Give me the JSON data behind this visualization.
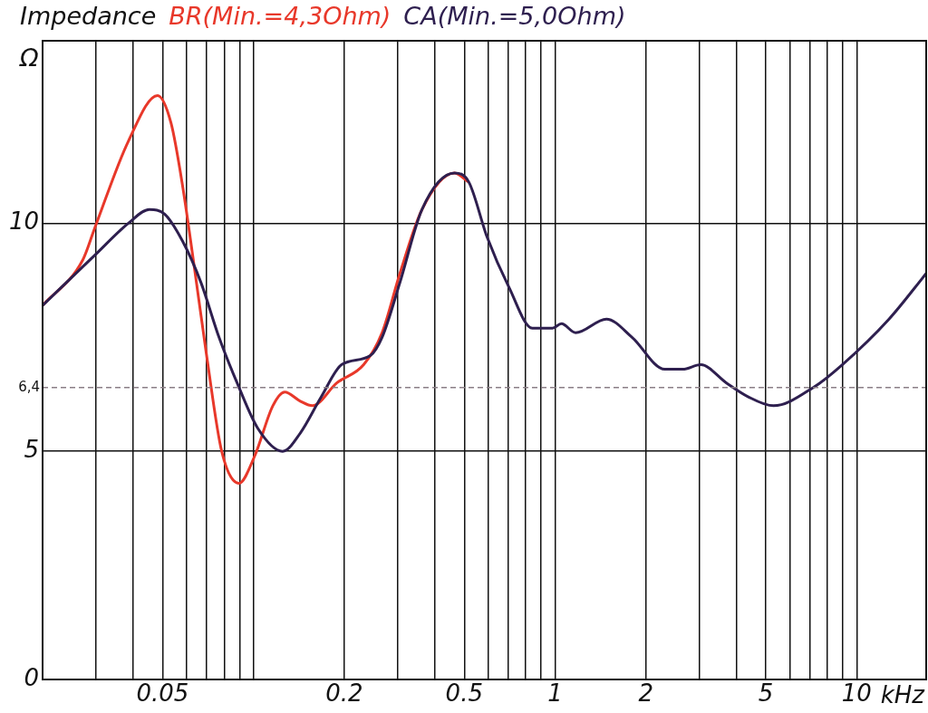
{
  "chart_data": {
    "type": "line",
    "title": "Impedance",
    "xlabel": "kHz",
    "ylabel": "Ω",
    "legend": "top",
    "grid": true,
    "log": "x",
    "xlim": [
      0.02,
      17
    ],
    "ylim": [
      0,
      14
    ],
    "xticks": [
      {
        "value": 0.03,
        "label": null
      },
      {
        "value": 0.04,
        "label": null
      },
      0.05,
      {
        "value": 0.06,
        "label": null
      },
      {
        "value": 0.07,
        "label": null
      },
      {
        "value": 0.08,
        "label": null
      },
      {
        "value": 0.09,
        "label": null
      },
      {
        "value": 0.1,
        "label": null
      },
      0.2,
      {
        "value": 0.3,
        "label": null
      },
      {
        "value": 0.4,
        "label": null
      },
      0.5,
      {
        "value": 0.6,
        "label": null
      },
      {
        "value": 0.7,
        "label": null
      },
      {
        "value": 0.8,
        "label": null
      },
      {
        "value": 0.9,
        "label": null
      },
      1,
      2,
      {
        "value": 3,
        "label": null
      },
      {
        "value": 4,
        "label": null
      },
      5,
      {
        "value": 6,
        "label": null
      },
      {
        "value": 7,
        "label": null
      },
      {
        "value": 8,
        "label": null
      },
      {
        "value": 9,
        "label": null
      },
      10
    ],
    "yticks": [
      0,
      5,
      10
    ],
    "ref_lines": [
      {
        "axis": "y",
        "value": 6.4,
        "label": "6,4",
        "color": "#8a7f86",
        "line_style": "dashed"
      }
    ],
    "series": [
      {
        "name": "BR(Min.=4,3Ohm)",
        "color": "#e8382a",
        "x": [
          0.02,
          0.0272,
          0.0298,
          0.0385,
          0.0481,
          0.0533,
          0.0583,
          0.0638,
          0.0703,
          0.0785,
          0.0895,
          0.101,
          0.116,
          0.127,
          0.143,
          0.157,
          0.189,
          0.232,
          0.267,
          0.306,
          0.362,
          0.464,
          0.518
        ],
        "values": [
          8.2,
          9.2,
          9.9,
          11.8,
          12.8,
          12.2,
          10.8,
          9.0,
          7.0,
          5.0,
          4.3,
          4.9,
          6.0,
          6.3,
          6.1,
          6.0,
          6.5,
          6.9,
          7.6,
          8.9,
          10.3,
          11.1,
          10.9
        ]
      },
      {
        "name": "CA(Min.=5,0Ohm)",
        "color": "#2e1f4f",
        "x": [
          0.02,
          0.0298,
          0.0385,
          0.0452,
          0.0508,
          0.0583,
          0.067,
          0.0769,
          0.0883,
          0.1035,
          0.125,
          0.143,
          0.168,
          0.196,
          0.244,
          0.267,
          0.306,
          0.362,
          0.464,
          0.518,
          0.595,
          0.703,
          0.841,
          0.98,
          1.05,
          1.17,
          1.48,
          1.8,
          2.31,
          2.65,
          3.04,
          3.7,
          4.36,
          5.3,
          7.18,
          8.96,
          12.8,
          17
        ],
        "values": [
          8.2,
          9.3,
          10.0,
          10.3,
          10.2,
          9.6,
          8.7,
          7.5,
          6.5,
          5.5,
          5.0,
          5.4,
          6.2,
          6.9,
          7.1,
          7.5,
          8.7,
          10.3,
          11.1,
          10.9,
          9.7,
          8.6,
          7.7,
          7.7,
          7.8,
          7.6,
          7.9,
          7.5,
          6.8,
          6.8,
          6.9,
          6.5,
          6.2,
          6.0,
          6.4,
          6.9,
          7.9,
          8.9
        ]
      }
    ]
  }
}
